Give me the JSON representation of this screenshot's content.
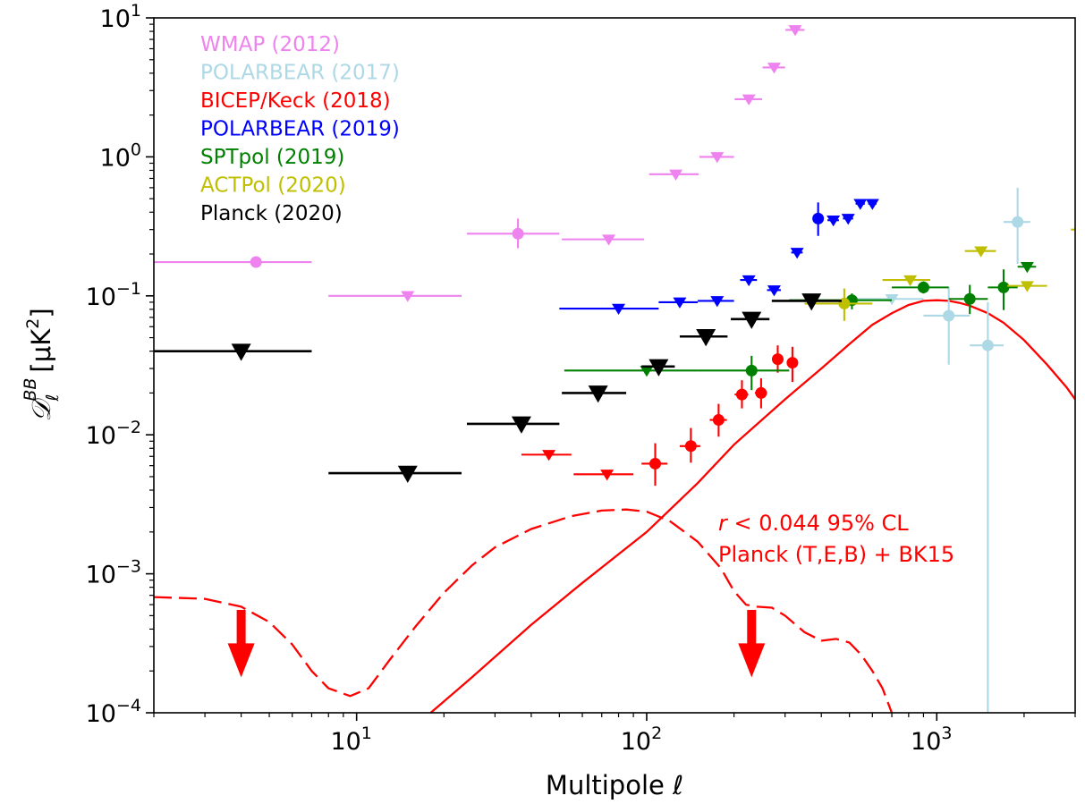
{
  "chart_data": {
    "type": "scatter",
    "xlabel": "Multipole ℓ",
    "ylabel_prefix": "𝒟",
    "ylabel_sub": "ℓ",
    "ylabel_sup": "BB",
    "ylabel_unit": "[μK",
    "ylabel_unit_sup": "2",
    "ylabel_close": "]",
    "xscale": "log",
    "yscale": "log",
    "xlim": [
      2,
      3000
    ],
    "ylim": [
      0.0001,
      10
    ],
    "x_ticks": [
      {
        "value": 10,
        "base": "10",
        "exp": "1"
      },
      {
        "value": 100,
        "base": "10",
        "exp": "2"
      },
      {
        "value": 1000,
        "base": "10",
        "exp": "3"
      }
    ],
    "y_ticks": [
      {
        "value": 0.0001,
        "base": "10",
        "exp": "−4"
      },
      {
        "value": 0.001,
        "base": "10",
        "exp": "−3"
      },
      {
        "value": 0.01,
        "base": "10",
        "exp": "−2"
      },
      {
        "value": 0.1,
        "base": "10",
        "exp": "−1"
      },
      {
        "value": 1,
        "base": "10",
        "exp": "0"
      },
      {
        "value": 10,
        "base": "10",
        "exp": "1"
      }
    ],
    "legend_position": "top-left",
    "series": [
      {
        "name": "WMAP (2012)",
        "color": "#ee82ee",
        "points": [
          {
            "x": 4.5,
            "xlo": 2,
            "xhi": 7,
            "y": 0.175,
            "marker": "circle"
          },
          {
            "x": 15,
            "xlo": 8,
            "xhi": 23,
            "y": 0.1,
            "marker": "triangle"
          },
          {
            "x": 36,
            "xlo": 24,
            "xhi": 50,
            "y": 0.28,
            "ylo": 0.22,
            "yhi": 0.36,
            "marker": "circle"
          },
          {
            "x": 74,
            "xlo": 51,
            "xhi": 98,
            "y": 0.255,
            "marker": "triangle"
          },
          {
            "x": 126,
            "xlo": 102,
            "xhi": 151,
            "y": 0.75,
            "marker": "triangle"
          },
          {
            "x": 175,
            "xlo": 152,
            "xhi": 200,
            "y": 1.0,
            "marker": "triangle"
          },
          {
            "x": 225,
            "xlo": 201,
            "xhi": 250,
            "y": 2.6,
            "marker": "triangle"
          },
          {
            "x": 275,
            "xlo": 251,
            "xhi": 300,
            "y": 4.4,
            "marker": "triangle"
          },
          {
            "x": 325,
            "xlo": 301,
            "xhi": 350,
            "y": 8.2,
            "marker": "triangle"
          }
        ]
      },
      {
        "name": "POLARBEAR (2017)",
        "color": "#add8e6",
        "points": [
          {
            "x": 700,
            "xlo": 500,
            "xhi": 900,
            "y": 0.095,
            "marker": "triangle"
          },
          {
            "x": 1100,
            "xlo": 900,
            "xhi": 1300,
            "y": 0.072,
            "ylo": 0.032,
            "yhi": 0.115,
            "marker": "circle"
          },
          {
            "x": 1500,
            "xlo": 1300,
            "xhi": 1700,
            "y": 0.044,
            "ylo": 0.0001,
            "yhi": 0.09,
            "marker": "circle"
          },
          {
            "x": 1900,
            "xlo": 1700,
            "xhi": 2100,
            "y": 0.34,
            "ylo": 0.17,
            "yhi": 0.6,
            "marker": "circle"
          }
        ]
      },
      {
        "name": "BICEP/Keck (2018)",
        "color": "#ff0000",
        "points": [
          {
            "x": 46,
            "xlo": 37,
            "xhi": 55,
            "y": 0.0072,
            "marker": "triangle"
          },
          {
            "x": 73,
            "xlo": 56,
            "xhi": 90,
            "y": 0.0052,
            "marker": "triangle"
          },
          {
            "x": 107,
            "xlo": 96,
            "xhi": 118,
            "y": 0.0062,
            "ylo": 0.0043,
            "yhi": 0.0087,
            "marker": "circle"
          },
          {
            "x": 142,
            "xlo": 130,
            "xhi": 153,
            "y": 0.0083,
            "ylo": 0.0063,
            "yhi": 0.0112,
            "marker": "circle"
          },
          {
            "x": 177,
            "xlo": 165,
            "xhi": 189,
            "y": 0.0128,
            "ylo": 0.0097,
            "yhi": 0.0167,
            "marker": "circle"
          },
          {
            "x": 213,
            "xlo": 201,
            "xhi": 224,
            "y": 0.0195,
            "ylo": 0.0155,
            "yhi": 0.0247,
            "marker": "circle"
          },
          {
            "x": 248,
            "xlo": 236,
            "xhi": 260,
            "y": 0.02,
            "ylo": 0.0155,
            "yhi": 0.0255,
            "marker": "circle"
          },
          {
            "x": 283,
            "xlo": 272,
            "xhi": 295,
            "y": 0.035,
            "ylo": 0.028,
            "yhi": 0.044,
            "marker": "circle"
          },
          {
            "x": 318,
            "xlo": 307,
            "xhi": 330,
            "y": 0.033,
            "ylo": 0.024,
            "yhi": 0.043,
            "marker": "circle"
          }
        ]
      },
      {
        "name": "POLARBEAR (2019)",
        "color": "#0000ff",
        "points": [
          {
            "x": 80,
            "xlo": 50,
            "xhi": 110,
            "y": 0.081,
            "marker": "triangle"
          },
          {
            "x": 130,
            "xlo": 110,
            "xhi": 150,
            "y": 0.09,
            "marker": "triangle"
          },
          {
            "x": 175,
            "xlo": 150,
            "xhi": 200,
            "y": 0.092,
            "marker": "triangle"
          },
          {
            "x": 225,
            "xlo": 210,
            "xhi": 240,
            "y": 0.13,
            "marker": "triangle"
          },
          {
            "x": 275,
            "xlo": 260,
            "xhi": 290,
            "y": 0.11,
            "marker": "triangle"
          },
          {
            "x": 330,
            "xlo": 315,
            "xhi": 345,
            "y": 0.205,
            "marker": "triangle"
          },
          {
            "x": 390,
            "xlo": 375,
            "xhi": 405,
            "y": 0.36,
            "ylo": 0.27,
            "yhi": 0.47,
            "marker": "circle"
          },
          {
            "x": 440,
            "xlo": 420,
            "xhi": 460,
            "y": 0.35,
            "marker": "triangle"
          },
          {
            "x": 495,
            "xlo": 475,
            "xhi": 515,
            "y": 0.36,
            "marker": "triangle"
          },
          {
            "x": 545,
            "xlo": 525,
            "xhi": 565,
            "y": 0.46,
            "marker": "triangle"
          },
          {
            "x": 600,
            "xlo": 580,
            "xhi": 620,
            "y": 0.46,
            "marker": "triangle"
          }
        ]
      },
      {
        "name": "SPTpol (2019)",
        "color": "#008000",
        "points": [
          {
            "x": 100,
            "xlo": 52,
            "xhi": 150,
            "y": 0.029,
            "marker": "triangle"
          },
          {
            "x": 230,
            "xlo": 150,
            "xhi": 310,
            "y": 0.029,
            "ylo": 0.021,
            "yhi": 0.037,
            "marker": "circle"
          },
          {
            "x": 510,
            "xlo": 310,
            "xhi": 700,
            "y": 0.093,
            "ylo": 0.08,
            "yhi": 0.104,
            "marker": "circle"
          },
          {
            "x": 900,
            "xlo": 700,
            "xhi": 1100,
            "y": 0.115,
            "ylo": 0.104,
            "yhi": 0.127,
            "marker": "circle"
          },
          {
            "x": 1300,
            "xlo": 1100,
            "xhi": 1500,
            "y": 0.095,
            "ylo": 0.074,
            "yhi": 0.12,
            "marker": "circle"
          },
          {
            "x": 1700,
            "xlo": 1500,
            "xhi": 1900,
            "y": 0.115,
            "ylo": 0.079,
            "yhi": 0.155,
            "marker": "circle"
          },
          {
            "x": 2050,
            "xlo": 1900,
            "xhi": 2200,
            "y": 0.162,
            "marker": "triangle"
          }
        ]
      },
      {
        "name": "ACTPol (2020)",
        "color": "#bfbf00",
        "points": [
          {
            "x": 480,
            "xlo": 350,
            "xhi": 600,
            "y": 0.088,
            "ylo": 0.066,
            "yhi": 0.113,
            "marker": "circle"
          },
          {
            "x": 810,
            "xlo": 650,
            "xhi": 950,
            "y": 0.13,
            "marker": "triangle"
          },
          {
            "x": 1420,
            "xlo": 1250,
            "xhi": 1600,
            "y": 0.21,
            "marker": "triangle"
          },
          {
            "x": 2050,
            "xlo": 1750,
            "xhi": 2400,
            "y": 0.118,
            "marker": "triangle"
          },
          {
            "x": 3200,
            "xlo": 2900,
            "xhi": 3600,
            "y": 0.3,
            "marker": "triangle"
          }
        ]
      },
      {
        "name": "Planck (2020)",
        "color": "#000000",
        "points": [
          {
            "x": 4,
            "xlo": 2,
            "xhi": 7,
            "y": 0.04,
            "marker": "triangle-big"
          },
          {
            "x": 15,
            "xlo": 8,
            "xhi": 23,
            "y": 0.0053,
            "marker": "triangle-big"
          },
          {
            "x": 37,
            "xlo": 24,
            "xhi": 50,
            "y": 0.012,
            "marker": "triangle-big"
          },
          {
            "x": 68,
            "xlo": 51,
            "xhi": 85,
            "y": 0.02,
            "marker": "triangle-big"
          },
          {
            "x": 110,
            "xlo": 96,
            "xhi": 125,
            "y": 0.031,
            "marker": "triangle-big"
          },
          {
            "x": 160,
            "xlo": 130,
            "xhi": 190,
            "y": 0.051,
            "marker": "triangle-big"
          },
          {
            "x": 230,
            "xlo": 195,
            "xhi": 265,
            "y": 0.068,
            "marker": "triangle-big"
          },
          {
            "x": 370,
            "xlo": 270,
            "xhi": 470,
            "y": 0.092,
            "marker": "triangle-big"
          }
        ]
      }
    ],
    "curves": [
      {
        "name": "lensing+r",
        "color": "#ff0000",
        "style": "solid",
        "points": [
          [
            18,
            0.0001
          ],
          [
            25,
            0.00018
          ],
          [
            40,
            0.00043
          ],
          [
            60,
            0.00086
          ],
          [
            100,
            0.002
          ],
          [
            150,
            0.0045
          ],
          [
            200,
            0.0085
          ],
          [
            300,
            0.018
          ],
          [
            400,
            0.03
          ],
          [
            500,
            0.045
          ],
          [
            600,
            0.062
          ],
          [
            700,
            0.075
          ],
          [
            800,
            0.086
          ],
          [
            900,
            0.092
          ],
          [
            1000,
            0.093
          ],
          [
            1100,
            0.092
          ],
          [
            1200,
            0.089
          ],
          [
            1300,
            0.085
          ],
          [
            1500,
            0.075
          ],
          [
            1700,
            0.064
          ],
          [
            2000,
            0.048
          ],
          [
            2400,
            0.032
          ],
          [
            2800,
            0.022
          ],
          [
            3000,
            0.018
          ]
        ]
      },
      {
        "name": "primordial",
        "color": "#ff0000",
        "style": "dashed",
        "points": [
          [
            2,
            0.00068
          ],
          [
            3,
            0.00066
          ],
          [
            4,
            0.00058
          ],
          [
            5,
            0.00045
          ],
          [
            6,
            0.00031
          ],
          [
            7,
            0.0002
          ],
          [
            8,
            0.00015
          ],
          [
            9.5,
            0.000132
          ],
          [
            11,
            0.00015
          ],
          [
            13,
            0.00024
          ],
          [
            16,
            0.00042
          ],
          [
            20,
            0.00073
          ],
          [
            25,
            0.00115
          ],
          [
            30,
            0.00155
          ],
          [
            40,
            0.0021
          ],
          [
            55,
            0.0026
          ],
          [
            70,
            0.00285
          ],
          [
            85,
            0.0029
          ],
          [
            100,
            0.0028
          ],
          [
            120,
            0.0024
          ],
          [
            150,
            0.0017
          ],
          [
            180,
            0.0011
          ],
          [
            200,
            0.00075
          ],
          [
            220,
            0.0006
          ],
          [
            240,
            0.00058
          ],
          [
            270,
            0.00057
          ],
          [
            300,
            0.0005
          ],
          [
            350,
            0.00038
          ],
          [
            400,
            0.00033
          ],
          [
            450,
            0.00034
          ],
          [
            500,
            0.00032
          ],
          [
            550,
            0.00026
          ],
          [
            600,
            0.0002
          ],
          [
            650,
            0.00015
          ],
          [
            700,
            0.0001
          ]
        ]
      }
    ],
    "arrows": [
      {
        "x": 4,
        "y_top": 0.00055,
        "y_bottom": 0.00018,
        "color": "#ff0000"
      },
      {
        "x": 230,
        "y_top": 0.00055,
        "y_bottom": 0.00018,
        "color": "#ff0000"
      }
    ],
    "annotation": {
      "line1_prefix": "r",
      "line1_rest": " < 0.044 95% CL",
      "line2": "Planck (T,E,B) + BK15",
      "color": "#ff0000"
    }
  }
}
